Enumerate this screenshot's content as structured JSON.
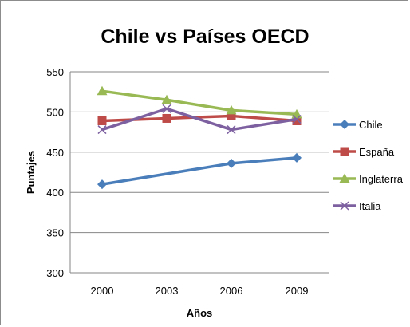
{
  "chart_data": {
    "type": "line",
    "title": "Chile vs Países OECD",
    "xlabel": "Años",
    "ylabel": "Puntajes",
    "categories": [
      "2000",
      "2003",
      "2006",
      "2009"
    ],
    "ylim": [
      300,
      550
    ],
    "yticks": [
      300,
      350,
      400,
      450,
      500,
      550
    ],
    "grid": true,
    "legend_position": "right",
    "series": [
      {
        "name": "Chile",
        "values": [
          410,
          null,
          436,
          443
        ],
        "color": "#4a7ebb",
        "marker": "diamond"
      },
      {
        "name": "España",
        "values": [
          489,
          492,
          495,
          489
        ],
        "color": "#be4b48",
        "marker": "square"
      },
      {
        "name": "Inglaterra",
        "values": [
          526,
          515,
          502,
          497
        ],
        "color": "#98b954",
        "marker": "triangle"
      },
      {
        "name": "Italia",
        "values": [
          478,
          504,
          478,
          491
        ],
        "color": "#7d60a0",
        "marker": "x"
      }
    ]
  }
}
